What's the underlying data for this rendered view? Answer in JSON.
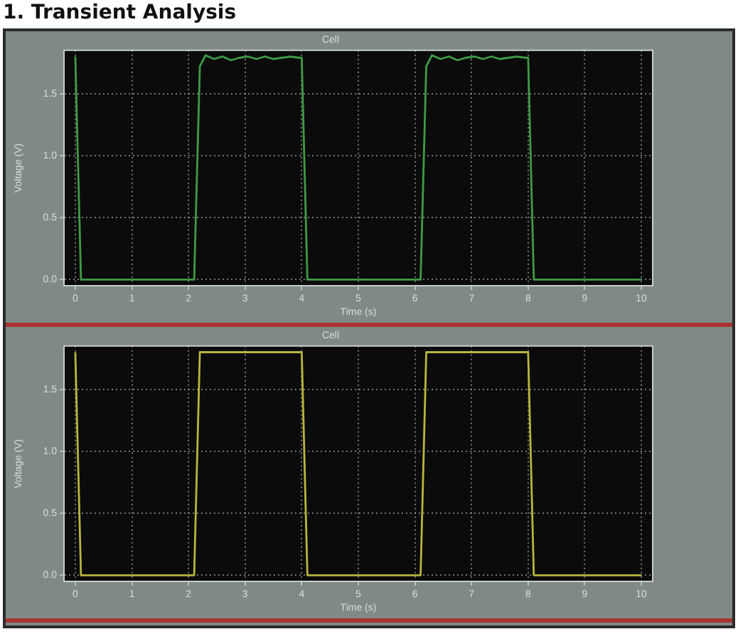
{
  "chart_data": [
    {
      "type": "line",
      "title": "1. Transient Analysis",
      "subtitle": "Cell",
      "xlabel": "Time (s)",
      "ylabel": "Voltage (V)",
      "x": [
        0,
        0.1,
        2.1,
        2.2,
        2.3,
        2.45,
        2.6,
        2.75,
        2.9,
        3.05,
        3.2,
        3.35,
        3.5,
        3.65,
        3.8,
        3.95,
        4.0,
        4.1,
        6.1,
        6.2,
        6.3,
        6.45,
        6.6,
        6.75,
        6.9,
        7.05,
        7.2,
        7.35,
        7.5,
        7.65,
        7.8,
        7.95,
        8.0,
        8.1,
        10
      ],
      "series": [
        {
          "color": "#3f9b45",
          "values": [
            1.8,
            0,
            0,
            1.72,
            1.81,
            1.78,
            1.8,
            1.77,
            1.79,
            1.8,
            1.78,
            1.8,
            1.78,
            1.79,
            1.8,
            1.79,
            1.79,
            0,
            0,
            1.72,
            1.81,
            1.78,
            1.8,
            1.77,
            1.79,
            1.8,
            1.78,
            1.8,
            1.78,
            1.79,
            1.8,
            1.79,
            1.79,
            0,
            0
          ]
        }
      ],
      "xlim": [
        -0.2,
        10.2
      ],
      "xticks": [
        0,
        1,
        2,
        3,
        4,
        5,
        6,
        7,
        8,
        9,
        10
      ],
      "ylim": [
        -0.05,
        1.85
      ],
      "yticks": [
        {
          "value": 0,
          "label": "0.0"
        },
        {
          "value": 0.5,
          "label": "0.5"
        },
        {
          "value": 1,
          "label": "1.0"
        },
        {
          "value": 1.5,
          "label": "1.5"
        }
      ],
      "grid": true,
      "legend": false,
      "marker": "none",
      "line_style": "solid"
    },
    {
      "type": "line",
      "subtitle": "Cell",
      "xlabel": "Time (s)",
      "ylabel": "Voltage (V)",
      "x": [
        0,
        0.1,
        2.1,
        2.2,
        4.0,
        4.1,
        6.1,
        6.2,
        8.0,
        8.1,
        10
      ],
      "series": [
        {
          "color": "#b9b53c",
          "values": [
            1.8,
            0,
            0,
            1.8,
            1.8,
            0,
            0,
            1.8,
            1.8,
            0,
            0
          ]
        }
      ],
      "xlim": [
        -0.2,
        10.2
      ],
      "xticks": [
        0,
        1,
        2,
        3,
        4,
        5,
        6,
        7,
        8,
        9,
        10
      ],
      "ylim": [
        -0.05,
        1.85
      ],
      "yticks": [
        {
          "value": 0,
          "label": "0.0"
        },
        {
          "value": 0.5,
          "label": "0.5"
        },
        {
          "value": 1,
          "label": "1.0"
        },
        {
          "value": 1.5,
          "label": "1.5"
        }
      ],
      "grid": true,
      "legend": false,
      "marker": "none",
      "line_style": "solid"
    }
  ]
}
